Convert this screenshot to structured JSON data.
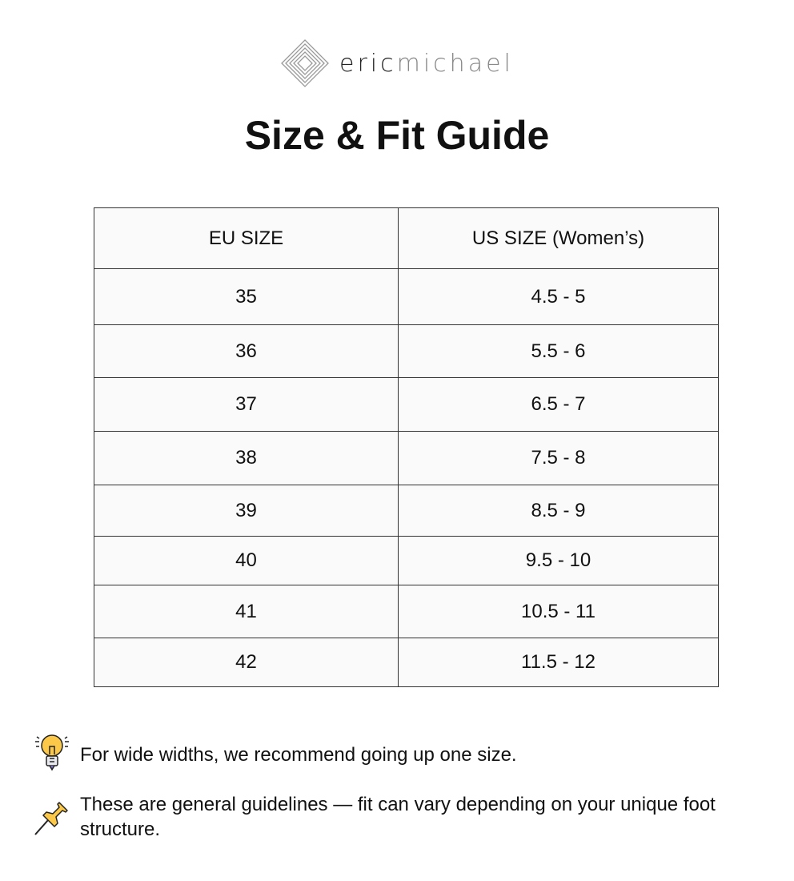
{
  "brand": {
    "part1": "eric",
    "part2": "michael"
  },
  "title": "Size & Fit Guide",
  "table": {
    "headers": [
      "EU SIZE",
      "US SIZE (Women’s)"
    ],
    "rows": [
      [
        "35",
        "4.5 - 5"
      ],
      [
        "36",
        "5.5 - 6"
      ],
      [
        "37",
        "6.5 - 7"
      ],
      [
        "38",
        "7.5 - 8"
      ],
      [
        "39",
        "8.5 - 9"
      ],
      [
        "40",
        "9.5 - 10"
      ],
      [
        "41",
        "10.5 - 11"
      ],
      [
        "42",
        "11.5 - 12"
      ]
    ]
  },
  "notes": [
    {
      "icon": "lightbulb-icon",
      "text": "For wide widths, we recommend going up one size."
    },
    {
      "icon": "pushpin-icon",
      "text": "These are general guidelines — fit can vary depending on your unique foot structure."
    }
  ]
}
